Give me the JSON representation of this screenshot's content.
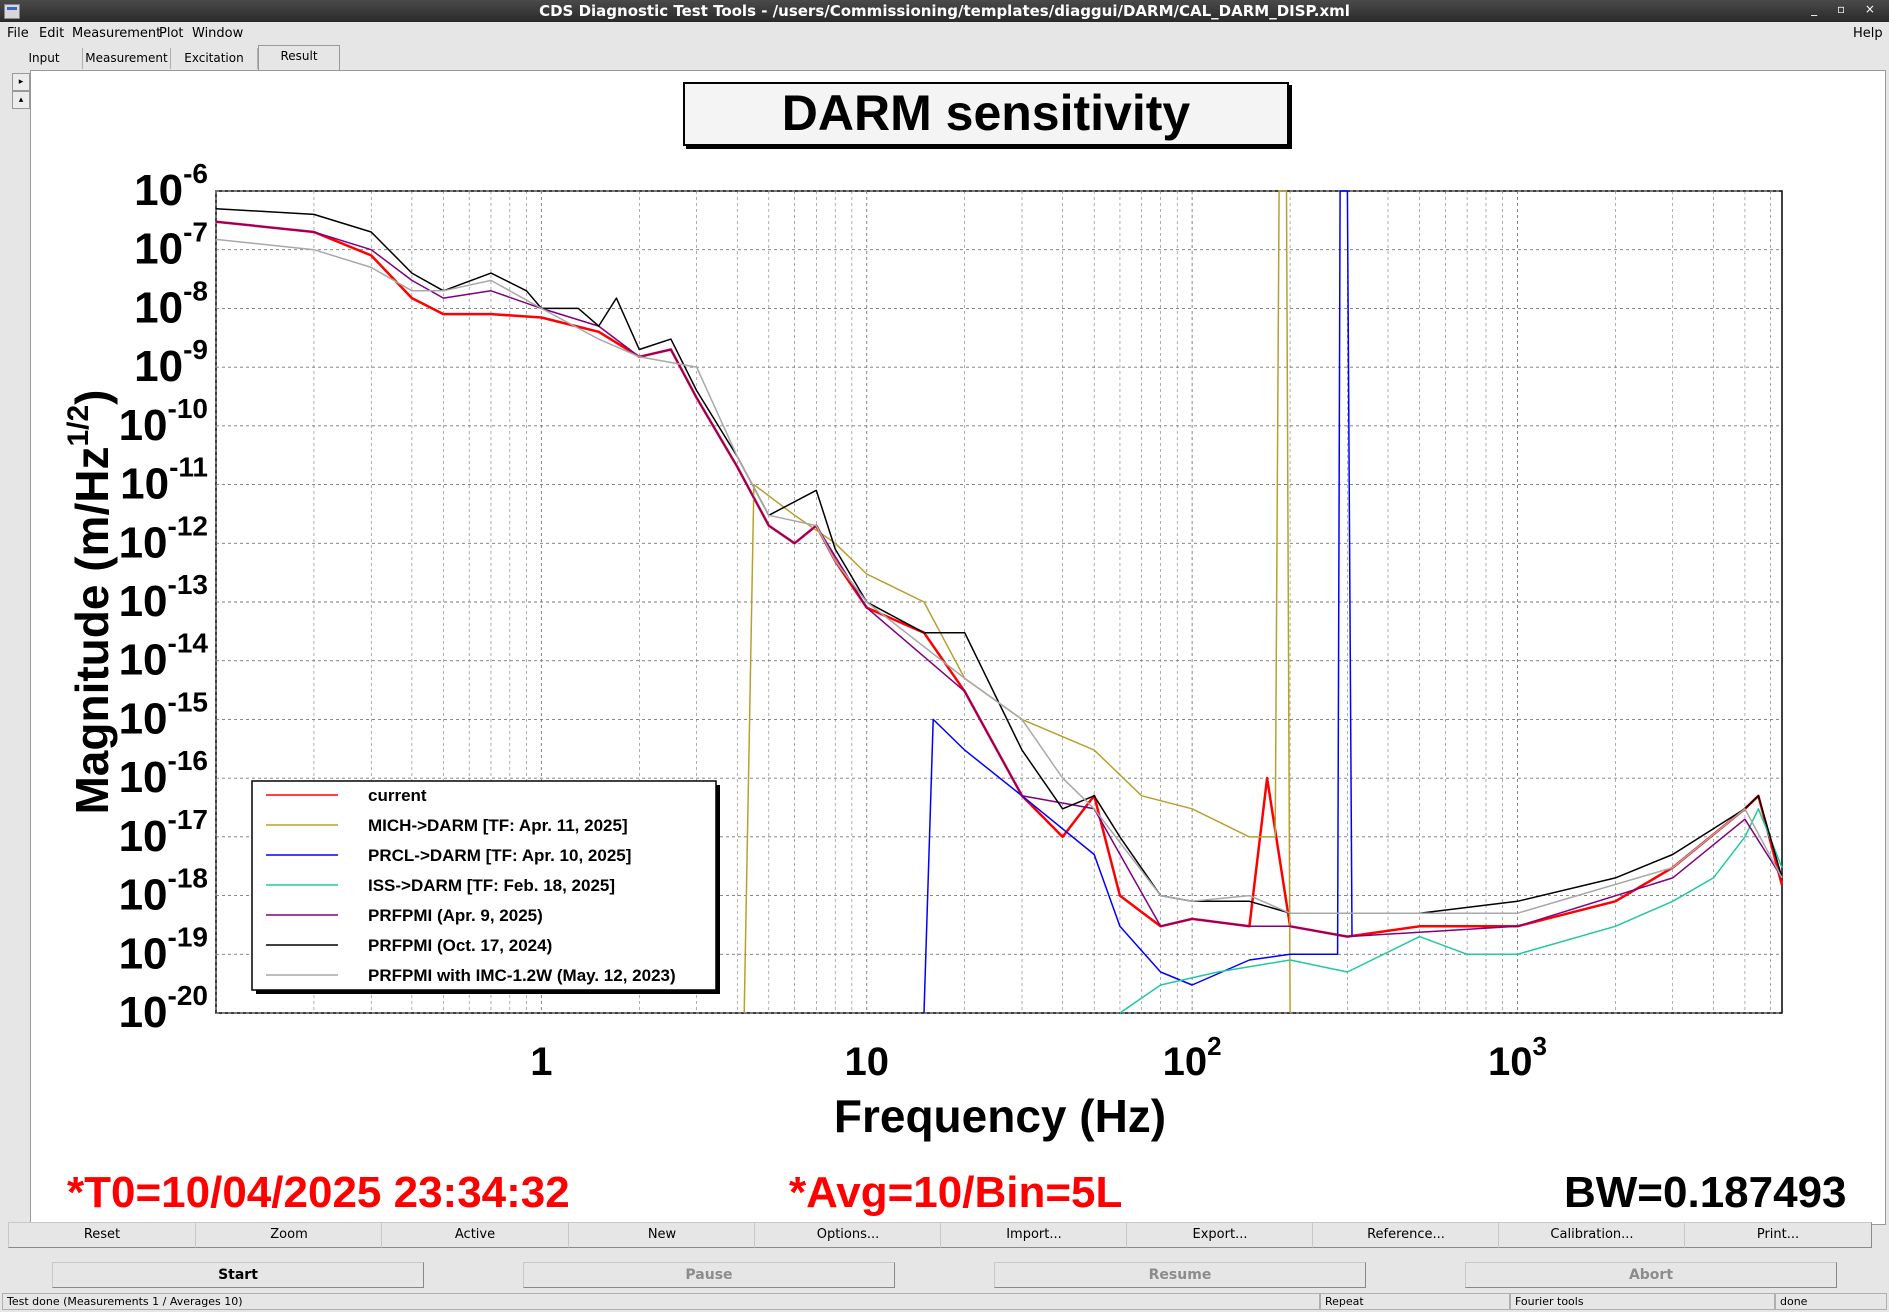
{
  "window": {
    "title": "CDS Diagnostic Test Tools - /users/Commissioning/templates/diaggui/DARM/CAL_DARM_DISP.xml",
    "controls": "_ ▫ ×"
  },
  "menubar": {
    "file": "File",
    "edit": "Edit",
    "measurement": "Measurement",
    "plot": "Plot",
    "window": "Window",
    "help": "Help"
  },
  "tabs": [
    "Input",
    "Measurement",
    "Excitation",
    "Result"
  ],
  "active_tab": "Result",
  "side_buttons": [
    "▸",
    "▴"
  ],
  "info": {
    "t0": "*T0=10/04/2025 23:34:32",
    "avg": "*Avg=10/Bin=5L",
    "bw": "BW=0.187493"
  },
  "plot_buttons": [
    "Reset",
    "Zoom",
    "Active",
    "New",
    "Options...",
    "Import...",
    "Export...",
    "Reference...",
    "Calibration...",
    "Print..."
  ],
  "control_buttons": {
    "start": "Start",
    "pause": "Pause",
    "resume": "Resume",
    "abort": "Abort"
  },
  "status": {
    "message": "Test done (Measurements 1 / Averages 10)",
    "repeat": "Repeat",
    "tools": "Fourier tools",
    "state": "done"
  },
  "chart_data": {
    "type": "line",
    "title": "DARM sensitivity",
    "xlabel": "Frequency (Hz)",
    "ylabel": "Magnitude (m/Hz^1/2)",
    "x_scale": "log",
    "y_scale": "log",
    "xlim": [
      0.1,
      6500
    ],
    "ylim": [
      1e-20,
      1e-06
    ],
    "x_tick_labels": [
      "1",
      "10",
      "10^2",
      "10^3"
    ],
    "y_tick_exponents": [
      -6,
      -7,
      -8,
      -9,
      -10,
      -11,
      -12,
      -13,
      -14,
      -15,
      -16,
      -17,
      -18,
      -19,
      -20
    ],
    "grid": true,
    "legend_position": "bottom-left",
    "series": [
      {
        "name": "current",
        "color": "#ff0000",
        "points": [
          [
            0.1,
            3e-07
          ],
          [
            0.2,
            2e-07
          ],
          [
            0.3,
            8e-08
          ],
          [
            0.4,
            1.5e-08
          ],
          [
            0.5,
            8e-09
          ],
          [
            0.7,
            8e-09
          ],
          [
            1,
            7e-09
          ],
          [
            1.5,
            4e-09
          ],
          [
            2,
            1.5e-09
          ],
          [
            2.5,
            2e-09
          ],
          [
            3,
            3e-10
          ],
          [
            4,
            2e-11
          ],
          [
            5,
            2e-12
          ],
          [
            6,
            1e-12
          ],
          [
            7,
            2e-12
          ],
          [
            8,
            5e-13
          ],
          [
            10,
            8e-14
          ],
          [
            15,
            3e-14
          ],
          [
            20,
            3e-15
          ],
          [
            30,
            5e-17
          ],
          [
            40,
            1e-17
          ],
          [
            50,
            5e-17
          ],
          [
            60,
            1e-18
          ],
          [
            80,
            3e-19
          ],
          [
            100,
            4e-19
          ],
          [
            150,
            3e-19
          ],
          [
            170,
            1e-16
          ],
          [
            200,
            3e-19
          ],
          [
            300,
            2e-19
          ],
          [
            500,
            3e-19
          ],
          [
            1000,
            3e-19
          ],
          [
            2000,
            8e-19
          ],
          [
            3000,
            3e-18
          ],
          [
            5000,
            3e-17
          ],
          [
            5500,
            5e-17
          ],
          [
            6500,
            1.5e-18
          ]
        ]
      },
      {
        "name": "MICH->DARM [TF: Apr. 11, 2025]",
        "color": "#b8a030",
        "points": [
          [
            4.2,
            1e-20
          ],
          [
            4.5,
            1e-11
          ],
          [
            6,
            3e-12
          ],
          [
            8,
            1e-12
          ],
          [
            10,
            3e-13
          ],
          [
            15,
            1e-13
          ],
          [
            20,
            5e-15
          ],
          [
            30,
            1e-15
          ],
          [
            50,
            3e-16
          ],
          [
            70,
            5e-17
          ],
          [
            100,
            3e-17
          ],
          [
            150,
            1e-17
          ],
          [
            180,
            1e-17
          ],
          [
            185,
            1e-06
          ],
          [
            195,
            1e-06
          ],
          [
            200,
            1e-20
          ]
        ]
      },
      {
        "name": "PRCL->DARM [TF: Apr. 10, 2025]",
        "color": "#0000ff",
        "points": [
          [
            15,
            1e-20
          ],
          [
            16,
            1e-15
          ],
          [
            20,
            3e-16
          ],
          [
            30,
            5e-17
          ],
          [
            50,
            5e-18
          ],
          [
            60,
            3e-19
          ],
          [
            80,
            5e-20
          ],
          [
            100,
            3e-20
          ],
          [
            150,
            8e-20
          ],
          [
            200,
            1e-19
          ],
          [
            280,
            1e-19
          ],
          [
            285,
            1e-06
          ],
          [
            300,
            1e-06
          ],
          [
            310,
            2e-19
          ]
        ]
      },
      {
        "name": "ISS->DARM [TF: Feb. 18, 2025]",
        "color": "#20c8a0",
        "points": [
          [
            60,
            1e-20
          ],
          [
            80,
            3e-20
          ],
          [
            120,
            5e-20
          ],
          [
            200,
            8e-20
          ],
          [
            300,
            5e-20
          ],
          [
            500,
            2e-19
          ],
          [
            700,
            1e-19
          ],
          [
            1000,
            1e-19
          ],
          [
            2000,
            3e-19
          ],
          [
            3000,
            8e-19
          ],
          [
            4000,
            2e-18
          ],
          [
            5000,
            1e-17
          ],
          [
            5500,
            3e-17
          ],
          [
            6500,
            3e-18
          ]
        ]
      },
      {
        "name": "PRFPMI (Apr. 9, 2025)",
        "color": "#800080",
        "points": [
          [
            0.1,
            3e-07
          ],
          [
            0.2,
            2e-07
          ],
          [
            0.3,
            1e-07
          ],
          [
            0.4,
            3e-08
          ],
          [
            0.5,
            1.5e-08
          ],
          [
            0.7,
            2e-08
          ],
          [
            1,
            1e-08
          ],
          [
            1.5,
            5e-09
          ],
          [
            2,
            1.5e-09
          ],
          [
            2.5,
            2e-09
          ],
          [
            3,
            3e-10
          ],
          [
            4,
            2e-11
          ],
          [
            5,
            2e-12
          ],
          [
            6,
            1e-12
          ],
          [
            7,
            2e-12
          ],
          [
            10,
            8e-14
          ],
          [
            20,
            3e-15
          ],
          [
            30,
            5e-17
          ],
          [
            50,
            3e-17
          ],
          [
            80,
            3e-19
          ],
          [
            100,
            4e-19
          ],
          [
            150,
            3e-19
          ],
          [
            200,
            3e-19
          ],
          [
            300,
            2e-19
          ],
          [
            1000,
            3e-19
          ],
          [
            3000,
            2e-18
          ],
          [
            5000,
            2e-17
          ],
          [
            6500,
            2e-18
          ]
        ]
      },
      {
        "name": "PRFPMI (Oct. 17, 2024)",
        "color": "#000000",
        "points": [
          [
            0.1,
            5e-07
          ],
          [
            0.2,
            4e-07
          ],
          [
            0.3,
            2e-07
          ],
          [
            0.4,
            4e-08
          ],
          [
            0.5,
            2e-08
          ],
          [
            0.7,
            4e-08
          ],
          [
            0.9,
            2e-08
          ],
          [
            1,
            1e-08
          ],
          [
            1.3,
            1e-08
          ],
          [
            1.5,
            5e-09
          ],
          [
            1.7,
            1.5e-08
          ],
          [
            2,
            2e-09
          ],
          [
            2.5,
            3e-09
          ],
          [
            3,
            4e-10
          ],
          [
            4,
            3e-11
          ],
          [
            5,
            3e-12
          ],
          [
            7,
            8e-12
          ],
          [
            8,
            8e-13
          ],
          [
            10,
            1e-13
          ],
          [
            15,
            3e-14
          ],
          [
            20,
            3e-14
          ],
          [
            30,
            3e-16
          ],
          [
            40,
            3e-17
          ],
          [
            50,
            5e-17
          ],
          [
            60,
            1e-17
          ],
          [
            80,
            1e-18
          ],
          [
            100,
            8e-19
          ],
          [
            150,
            8e-19
          ],
          [
            200,
            5e-19
          ],
          [
            300,
            5e-19
          ],
          [
            500,
            5e-19
          ],
          [
            1000,
            8e-19
          ],
          [
            2000,
            2e-18
          ],
          [
            3000,
            5e-18
          ],
          [
            5000,
            3e-17
          ],
          [
            5500,
            5e-17
          ],
          [
            6500,
            2e-18
          ]
        ]
      },
      {
        "name": "PRFPMI with IMC-1.2W (May. 12, 2023)",
        "color": "#a8a8a8",
        "points": [
          [
            0.1,
            1.5e-07
          ],
          [
            0.2,
            1e-07
          ],
          [
            0.3,
            5e-08
          ],
          [
            0.4,
            2e-08
          ],
          [
            0.5,
            2e-08
          ],
          [
            0.7,
            3e-08
          ],
          [
            1,
            1e-08
          ],
          [
            1.5,
            3e-09
          ],
          [
            2,
            1.5e-09
          ],
          [
            3,
            1e-09
          ],
          [
            4,
            3e-11
          ],
          [
            5,
            3e-12
          ],
          [
            7,
            2e-12
          ],
          [
            8,
            5e-13
          ],
          [
            10,
            1e-13
          ],
          [
            20,
            5e-15
          ],
          [
            30,
            1e-15
          ],
          [
            40,
            1e-16
          ],
          [
            50,
            3e-17
          ],
          [
            80,
            1e-18
          ],
          [
            100,
            8e-19
          ],
          [
            150,
            1e-18
          ],
          [
            200,
            5e-19
          ],
          [
            1000,
            5e-19
          ],
          [
            3000,
            3e-18
          ],
          [
            5000,
            3e-17
          ],
          [
            6500,
            2e-18
          ]
        ]
      }
    ]
  }
}
